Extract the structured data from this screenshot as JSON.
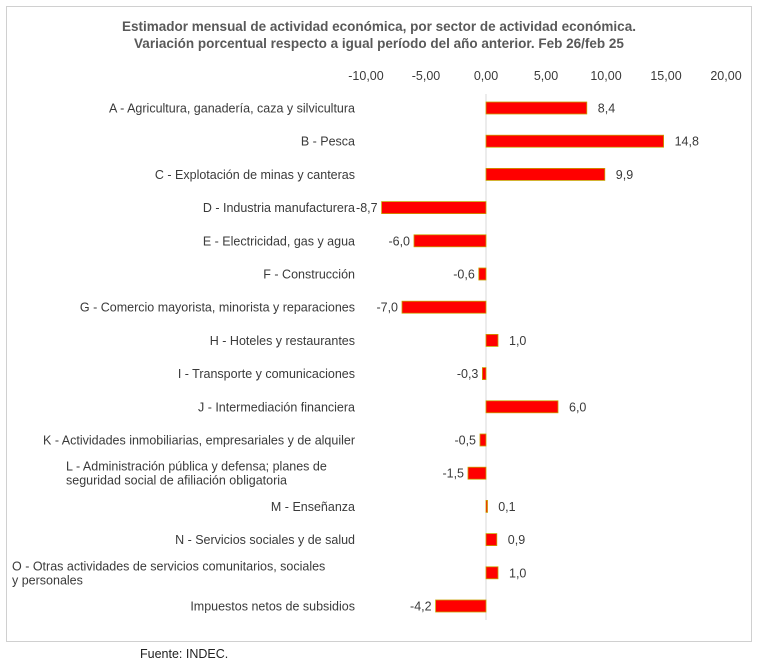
{
  "title_line1": "Estimador mensual de actividad económica, por sector de actividad económica.",
  "title_line2": "Variación porcentual respecto a igual período del año anterior. Feb 26/feb 25",
  "source": "Fuente: INDEC.",
  "chart_data": {
    "type": "bar",
    "orientation": "horizontal",
    "xlim": [
      -10,
      20
    ],
    "xticks": [
      "-10,00",
      "-5,00",
      "0,00",
      "5,00",
      "10,00",
      "15,00",
      "20,00"
    ],
    "xtick_values": [
      -10,
      -5,
      0,
      5,
      10,
      15,
      20
    ],
    "axis_position": "top",
    "grid": false,
    "categories": [
      [
        "A -  Agricultura, ganadería, caza y silvicultura"
      ],
      [
        "B - Pesca"
      ],
      [
        "C - Explotación de minas y canteras"
      ],
      [
        "D - Industria manufacturera"
      ],
      [
        "E - Electricidad, gas y agua"
      ],
      [
        "F - Construcción"
      ],
      [
        "G - Comercio mayorista, minorista y reparaciones"
      ],
      [
        "H - Hoteles y restaurantes"
      ],
      [
        "I - Transporte y comunicaciones"
      ],
      [
        "J - Intermediación financiera"
      ],
      [
        "K - Actividades inmobiliarias, empresariales y de alquiler"
      ],
      [
        "L - Administración pública y defensa; planes de",
        "seguridad social de afiliación obligatoria"
      ],
      [
        "M - Enseñanza"
      ],
      [
        "N - Servicios sociales y de salud"
      ],
      [
        "O - Otras actividades de servicios comunitarios, sociales",
        "y personales"
      ],
      [
        "Impuestos netos de subsidios"
      ]
    ],
    "values": [
      8.4,
      14.8,
      9.9,
      -8.7,
      -6.0,
      -0.6,
      -7.0,
      1.0,
      -0.3,
      6.0,
      -0.5,
      -1.5,
      0.1,
      0.9,
      1.0,
      -4.2
    ],
    "labels": [
      "8,4",
      "14,8",
      "9,9",
      "-8,7",
      "-6,0",
      "-0,6",
      "-7,0",
      "1,0",
      "-0,3",
      "6,0",
      "-0,5",
      "-1,5",
      "0,1",
      "0,9",
      "1,0",
      "-4,2"
    ],
    "colors": {
      "bar_fill": "#ff0000",
      "bar_edge": "#c8a000"
    }
  }
}
